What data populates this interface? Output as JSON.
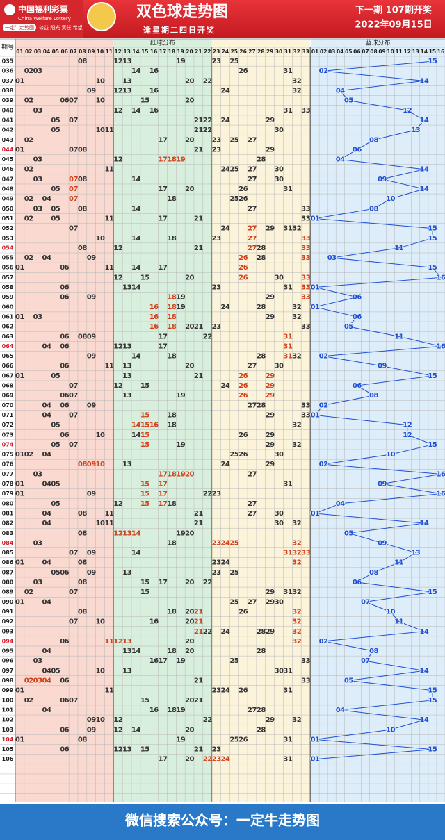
{
  "header": {
    "logo_cn": "中国福利彩票",
    "logo_en": "China Welfare Lottery",
    "badge": "一定牛走势图",
    "slogan": "公益 阳光 责任 希望",
    "title": "双色球走势图",
    "subtitle": "逢星期二四日开奖",
    "next_issue": "下一期 107期开奖",
    "date": "2022年09月15日"
  },
  "table": {
    "issue_header": "期号",
    "red_header": "红球分布",
    "blue_header": "蓝球分布",
    "red_columns": [
      "01",
      "02",
      "03",
      "04",
      "05",
      "06",
      "07",
      "08",
      "09",
      "10",
      "11",
      "12",
      "13",
      "14",
      "15",
      "16",
      "17",
      "18",
      "19",
      "20",
      "21",
      "22",
      "23",
      "24",
      "25",
      "26",
      "27",
      "28",
      "29",
      "30",
      "31",
      "32",
      "33"
    ],
    "blue_columns": [
      "01",
      "02",
      "03",
      "04",
      "05",
      "06",
      "07",
      "08",
      "09",
      "10",
      "11",
      "12",
      "13",
      "14",
      "15",
      "16"
    ],
    "rows": [
      {
        "issue": "035",
        "red": [
          "08",
          "12",
          "13",
          "19",
          "23",
          "25"
        ],
        "blue": "15"
      },
      {
        "issue": "036",
        "red": [
          "02",
          "03",
          "14",
          "16",
          "26",
          "31"
        ],
        "blue": "02"
      },
      {
        "issue": "037",
        "red": [
          "01",
          "10",
          "13",
          "20",
          "22",
          "32"
        ],
        "blue": "14"
      },
      {
        "issue": "038",
        "red": [
          "09",
          "12",
          "13",
          "16",
          "24",
          "32"
        ],
        "blue": "04"
      },
      {
        "issue": "039",
        "red": [
          "02",
          "06",
          "07",
          "10",
          "15",
          "20"
        ],
        "blue": "05"
      },
      {
        "issue": "040",
        "red": [
          "03",
          "12",
          "14",
          "16",
          "31",
          "33"
        ],
        "blue": "12"
      },
      {
        "issue": "041",
        "red": [
          "05",
          "07",
          "21",
          "22",
          "24",
          "29"
        ],
        "blue": "14"
      },
      {
        "issue": "042",
        "red": [
          "05",
          "10",
          "11",
          "21",
          "22",
          "30"
        ],
        "blue": "13"
      },
      {
        "issue": "043",
        "red": [
          "02",
          "17",
          "20",
          "23",
          "25",
          "27"
        ],
        "blue": "08"
      },
      {
        "issue": "044",
        "red": [
          "01",
          "07",
          "08",
          "21",
          "23",
          "29"
        ],
        "blue": "06"
      },
      {
        "issue": "045",
        "red": [
          "03",
          "12",
          "17",
          "18",
          "19",
          "28"
        ],
        "blue": "04"
      },
      {
        "issue": "046",
        "red": [
          "02",
          "11",
          "24",
          "25",
          "27",
          "30"
        ],
        "blue": "14"
      },
      {
        "issue": "047",
        "red": [
          "03",
          "07",
          "08",
          "14",
          "27",
          "30"
        ],
        "blue": "09"
      },
      {
        "issue": "048",
        "red": [
          "05",
          "07",
          "17",
          "20",
          "26",
          "31"
        ],
        "blue": "14"
      },
      {
        "issue": "049",
        "red": [
          "02",
          "04",
          "07",
          "18",
          "25",
          "26"
        ],
        "blue": "10"
      },
      {
        "issue": "050",
        "red": [
          "03",
          "05",
          "08",
          "14",
          "27",
          "33"
        ],
        "blue": "08"
      },
      {
        "issue": "051",
        "red": [
          "02",
          "05",
          "11",
          "17",
          "21",
          "33"
        ],
        "blue": "01"
      },
      {
        "issue": "052",
        "red": [
          "07",
          "24",
          "27",
          "29",
          "31",
          "32"
        ],
        "blue": "15"
      },
      {
        "issue": "053",
        "red": [
          "10",
          "14",
          "18",
          "23",
          "27",
          "33"
        ],
        "blue": "15"
      },
      {
        "issue": "054",
        "red": [
          "08",
          "12",
          "21",
          "27",
          "28",
          "33"
        ],
        "blue": "11"
      },
      {
        "issue": "055",
        "red": [
          "02",
          "04",
          "09",
          "26",
          "28",
          "33"
        ],
        "blue": "03"
      },
      {
        "issue": "056",
        "red": [
          "01",
          "06",
          "11",
          "14",
          "17",
          "26"
        ],
        "blue": "15"
      },
      {
        "issue": "057",
        "red": [
          "12",
          "15",
          "20",
          "26",
          "30",
          "33"
        ],
        "blue": "16"
      },
      {
        "issue": "058",
        "red": [
          "06",
          "13",
          "14",
          "23",
          "31",
          "33"
        ],
        "blue": "01"
      },
      {
        "issue": "059",
        "red": [
          "06",
          "09",
          "18",
          "19",
          "29",
          "33"
        ],
        "blue": "06"
      },
      {
        "issue": "060",
        "red": [
          "16",
          "18",
          "19",
          "24",
          "28",
          "32"
        ],
        "blue": "01"
      },
      {
        "issue": "061",
        "red": [
          "01",
          "03",
          "16",
          "18",
          "29",
          "32"
        ],
        "blue": "06"
      },
      {
        "issue": "062",
        "red": [
          "16",
          "18",
          "20",
          "21",
          "23",
          "33"
        ],
        "blue": "05"
      },
      {
        "issue": "063",
        "red": [
          "06",
          "08",
          "09",
          "17",
          "22",
          "31"
        ],
        "blue": "11"
      },
      {
        "issue": "064",
        "red": [
          "04",
          "06",
          "12",
          "13",
          "17",
          "31"
        ],
        "blue": "16"
      },
      {
        "issue": "065",
        "red": [
          "09",
          "14",
          "18",
          "28",
          "31",
          "32"
        ],
        "blue": "02"
      },
      {
        "issue": "066",
        "red": [
          "06",
          "11",
          "13",
          "20",
          "27",
          "30"
        ],
        "blue": "09"
      },
      {
        "issue": "067",
        "red": [
          "01",
          "05",
          "13",
          "21",
          "26",
          "29"
        ],
        "blue": "15"
      },
      {
        "issue": "068",
        "red": [
          "07",
          "12",
          "15",
          "24",
          "26",
          "29"
        ],
        "blue": "06"
      },
      {
        "issue": "069",
        "red": [
          "06",
          "07",
          "13",
          "19",
          "26",
          "29"
        ],
        "blue": "08"
      },
      {
        "issue": "070",
        "red": [
          "04",
          "06",
          "09",
          "27",
          "28",
          "33"
        ],
        "blue": "02"
      },
      {
        "issue": "071",
        "red": [
          "04",
          "07",
          "15",
          "18",
          "29",
          "33"
        ],
        "blue": "01"
      },
      {
        "issue": "072",
        "red": [
          "05",
          "14",
          "15",
          "16",
          "18",
          "32"
        ],
        "blue": "12"
      },
      {
        "issue": "073",
        "red": [
          "06",
          "10",
          "14",
          "15",
          "26",
          "29"
        ],
        "blue": "12"
      },
      {
        "issue": "074",
        "red": [
          "05",
          "07",
          "15",
          "19",
          "29",
          "32"
        ],
        "blue": "15"
      },
      {
        "issue": "075",
        "red": [
          "01",
          "02",
          "04",
          "25",
          "26",
          "30"
        ],
        "blue": "10"
      },
      {
        "issue": "076",
        "red": [
          "08",
          "09",
          "10",
          "13",
          "24",
          "29"
        ],
        "blue": "02"
      },
      {
        "issue": "077",
        "red": [
          "03",
          "17",
          "18",
          "19",
          "20",
          "27"
        ],
        "blue": "16"
      },
      {
        "issue": "078",
        "red": [
          "01",
          "04",
          "05",
          "15",
          "17",
          "31"
        ],
        "blue": "09"
      },
      {
        "issue": "079",
        "red": [
          "01",
          "09",
          "15",
          "17",
          "22",
          "23"
        ],
        "blue": "16"
      },
      {
        "issue": "080",
        "red": [
          "05",
          "12",
          "15",
          "17",
          "18",
          "27"
        ],
        "blue": "04"
      },
      {
        "issue": "081",
        "red": [
          "04",
          "08",
          "11",
          "21",
          "27",
          "30"
        ],
        "blue": "01"
      },
      {
        "issue": "082",
        "red": [
          "04",
          "10",
          "11",
          "21",
          "30",
          "32"
        ],
        "blue": "14"
      },
      {
        "issue": "083",
        "red": [
          "08",
          "12",
          "13",
          "14",
          "19",
          "20"
        ],
        "blue": "05"
      },
      {
        "issue": "084",
        "red": [
          "03",
          "18",
          "23",
          "24",
          "25",
          "32"
        ],
        "blue": "09"
      },
      {
        "issue": "085",
        "red": [
          "07",
          "09",
          "14",
          "31",
          "32",
          "33"
        ],
        "blue": "13"
      },
      {
        "issue": "086",
        "red": [
          "01",
          "04",
          "08",
          "23",
          "24",
          "32"
        ],
        "blue": "11"
      },
      {
        "issue": "087",
        "red": [
          "05",
          "06",
          "09",
          "13",
          "23",
          "25"
        ],
        "blue": "08"
      },
      {
        "issue": "088",
        "red": [
          "03",
          "08",
          "15",
          "17",
          "20",
          "22"
        ],
        "blue": "06"
      },
      {
        "issue": "089",
        "red": [
          "02",
          "07",
          "15",
          "29",
          "31",
          "32"
        ],
        "blue": "15"
      },
      {
        "issue": "090",
        "red": [
          "01",
          "04",
          "25",
          "27",
          "29",
          "30"
        ],
        "blue": "07"
      },
      {
        "issue": "091",
        "red": [
          "08",
          "18",
          "20",
          "21",
          "26",
          "32"
        ],
        "blue": "10"
      },
      {
        "issue": "092",
        "red": [
          "07",
          "10",
          "16",
          "20",
          "21",
          "32"
        ],
        "blue": "11"
      },
      {
        "issue": "093",
        "red": [
          "21",
          "22",
          "24",
          "28",
          "29",
          "32"
        ],
        "blue": "14"
      },
      {
        "issue": "094",
        "red": [
          "06",
          "11",
          "12",
          "13",
          "20",
          "32"
        ],
        "blue": "02"
      },
      {
        "issue": "095",
        "red": [
          "04",
          "13",
          "14",
          "18",
          "20",
          "28"
        ],
        "blue": "08"
      },
      {
        "issue": "096",
        "red": [
          "03",
          "16",
          "17",
          "19",
          "25",
          "33"
        ],
        "blue": "07"
      },
      {
        "issue": "097",
        "red": [
          "04",
          "05",
          "10",
          "13",
          "30",
          "31"
        ],
        "blue": "14"
      },
      {
        "issue": "098",
        "red": [
          "02",
          "03",
          "04",
          "06",
          "21",
          "33"
        ],
        "blue": "05"
      },
      {
        "issue": "099",
        "red": [
          "01",
          "11",
          "23",
          "24",
          "26",
          "31"
        ],
        "blue": "15"
      },
      {
        "issue": "100",
        "red": [
          "02",
          "06",
          "07",
          "15",
          "20",
          "21"
        ],
        "blue": "15"
      },
      {
        "issue": "101",
        "red": [
          "04",
          "16",
          "18",
          "19",
          "27",
          "28"
        ],
        "blue": "04"
      },
      {
        "issue": "102",
        "red": [
          "09",
          "10",
          "12",
          "22",
          "29",
          "32"
        ],
        "blue": "14"
      },
      {
        "issue": "103",
        "red": [
          "06",
          "09",
          "12",
          "14",
          "20",
          "28"
        ],
        "blue": "10"
      },
      {
        "issue": "104",
        "red": [
          "01",
          "08",
          "19",
          "25",
          "26",
          "31"
        ],
        "blue": "01"
      },
      {
        "issue": "105",
        "red": [
          "06",
          "12",
          "13",
          "15",
          "21",
          "23"
        ],
        "blue": "15"
      },
      {
        "issue": "106",
        "red": [
          "17",
          "20",
          "22",
          "23",
          "24",
          "31"
        ],
        "blue": "01"
      }
    ]
  },
  "footer": {
    "text": "微信搜索公众号：一定牛走势图"
  }
}
